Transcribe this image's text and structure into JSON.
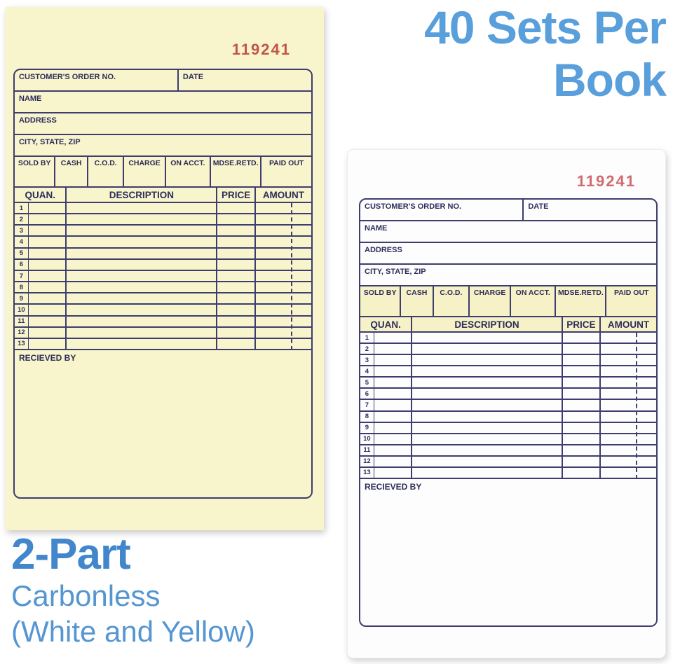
{
  "headline": {
    "line1": "40 Sets Per",
    "line2": "Book"
  },
  "caption": {
    "title": "2-Part",
    "line2": "Carbonless",
    "line3": "(White and Yellow)"
  },
  "colors": {
    "paper-yellow": "#f8f4cb",
    "paper-white": "#fdfdfd",
    "line": "#3d3d70",
    "label": "#2d2d5c",
    "tint": "#f6f1c6",
    "number-red": "#c2554a",
    "number-pink": "#d26a71",
    "blue-headline": "#589fdb",
    "blue-title": "#4287cc",
    "blue-sub": "#5596d2"
  },
  "forms": [
    {
      "copy": "yellow",
      "number": "119241",
      "fields": {
        "customer_order_no": "CUSTOMER'S ORDER NO.",
        "date": "DATE",
        "name": "NAME",
        "address": "ADDRESS",
        "city_state_zip": "CITY, STATE, ZIP"
      },
      "payment_options": [
        "SOLD BY",
        "CASH",
        "C.O.D.",
        "CHARGE",
        "ON ACCT.",
        "MDSE.RETD.",
        "PAID OUT"
      ],
      "columns": [
        "QUAN.",
        "DESCRIPTION",
        "PRICE",
        "AMOUNT"
      ],
      "row_numbers": [
        "1",
        "2",
        "3",
        "4",
        "5",
        "6",
        "7",
        "8",
        "9",
        "10",
        "11",
        "12",
        "13"
      ],
      "received_by": "RECIEVED BY"
    },
    {
      "copy": "white",
      "number": "119241",
      "fields": {
        "customer_order_no": "CUSTOMER'S ORDER NO.",
        "date": "DATE",
        "name": "NAME",
        "address": "ADDRESS",
        "city_state_zip": "CITY, STATE, ZIP"
      },
      "payment_options": [
        "SOLD BY",
        "CASH",
        "C.O.D.",
        "CHARGE",
        "ON ACCT.",
        "MDSE.RETD.",
        "PAID OUT"
      ],
      "columns": [
        "QUAN.",
        "DESCRIPTION",
        "PRICE",
        "AMOUNT"
      ],
      "row_numbers": [
        "1",
        "2",
        "3",
        "4",
        "5",
        "6",
        "7",
        "8",
        "9",
        "10",
        "11",
        "12",
        "13"
      ],
      "received_by": "RECIEVED BY"
    }
  ]
}
